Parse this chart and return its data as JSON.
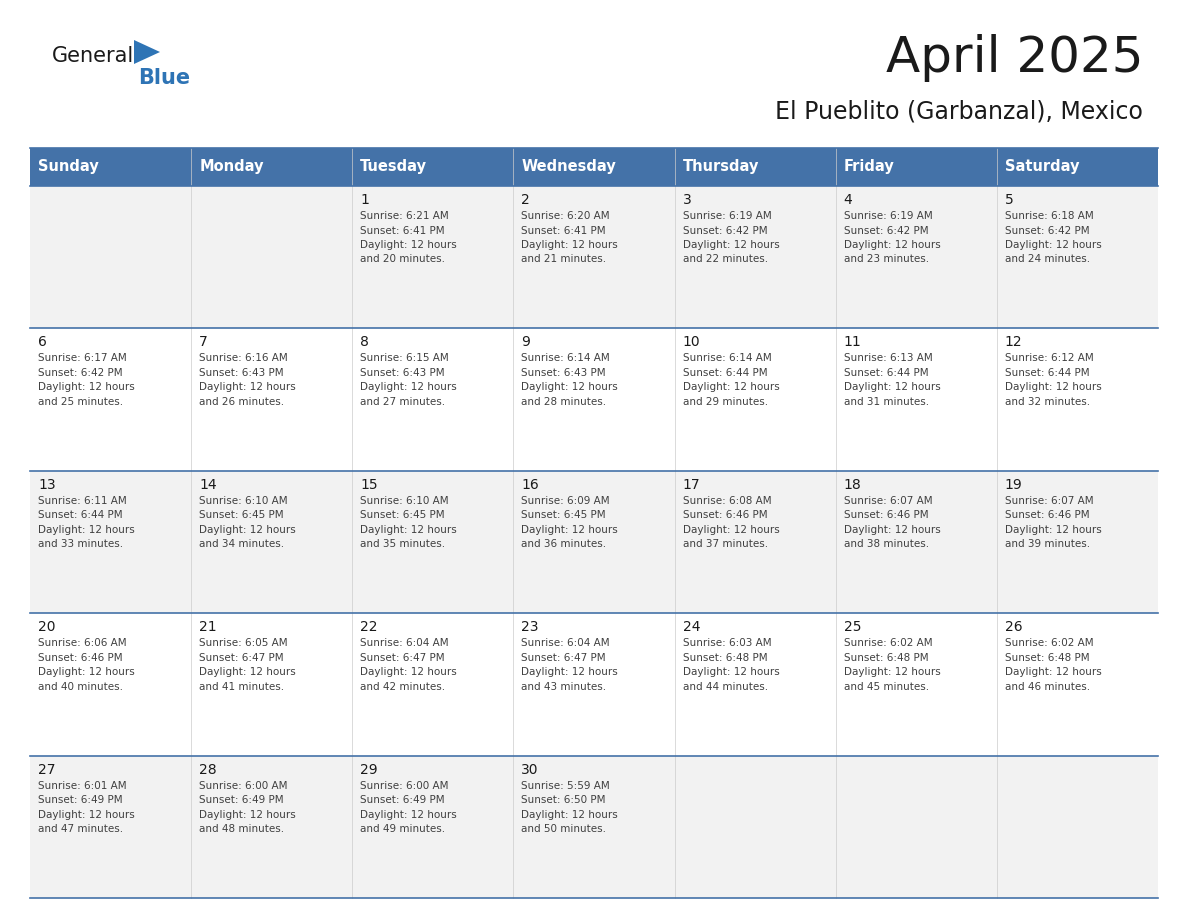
{
  "title": "April 2025",
  "subtitle": "El Pueblito (Garbanzal), Mexico",
  "header_bg_color": "#4472a8",
  "header_text_color": "#ffffff",
  "header_font_size": 10.5,
  "day_names": [
    "Sunday",
    "Monday",
    "Tuesday",
    "Wednesday",
    "Thursday",
    "Friday",
    "Saturday"
  ],
  "row_bg_colors": [
    "#f2f2f2",
    "#ffffff"
  ],
  "grid_line_color": "#4472a8",
  "title_fontsize": 36,
  "subtitle_fontsize": 17,
  "cell_fontsize": 7.5,
  "day_num_fontsize": 10,
  "calendar_data": [
    [
      {
        "day": "",
        "sunrise": "",
        "sunset": "",
        "daylight_min": ""
      },
      {
        "day": "",
        "sunrise": "",
        "sunset": "",
        "daylight_min": ""
      },
      {
        "day": "1",
        "sunrise": "6:21 AM",
        "sunset": "6:41 PM",
        "daylight_min": "20"
      },
      {
        "day": "2",
        "sunrise": "6:20 AM",
        "sunset": "6:41 PM",
        "daylight_min": "21"
      },
      {
        "day": "3",
        "sunrise": "6:19 AM",
        "sunset": "6:42 PM",
        "daylight_min": "22"
      },
      {
        "day": "4",
        "sunrise": "6:19 AM",
        "sunset": "6:42 PM",
        "daylight_min": "23"
      },
      {
        "day": "5",
        "sunrise": "6:18 AM",
        "sunset": "6:42 PM",
        "daylight_min": "24"
      }
    ],
    [
      {
        "day": "6",
        "sunrise": "6:17 AM",
        "sunset": "6:42 PM",
        "daylight_min": "25"
      },
      {
        "day": "7",
        "sunrise": "6:16 AM",
        "sunset": "6:43 PM",
        "daylight_min": "26"
      },
      {
        "day": "8",
        "sunrise": "6:15 AM",
        "sunset": "6:43 PM",
        "daylight_min": "27"
      },
      {
        "day": "9",
        "sunrise": "6:14 AM",
        "sunset": "6:43 PM",
        "daylight_min": "28"
      },
      {
        "day": "10",
        "sunrise": "6:14 AM",
        "sunset": "6:44 PM",
        "daylight_min": "29"
      },
      {
        "day": "11",
        "sunrise": "6:13 AM",
        "sunset": "6:44 PM",
        "daylight_min": "31"
      },
      {
        "day": "12",
        "sunrise": "6:12 AM",
        "sunset": "6:44 PM",
        "daylight_min": "32"
      }
    ],
    [
      {
        "day": "13",
        "sunrise": "6:11 AM",
        "sunset": "6:44 PM",
        "daylight_min": "33"
      },
      {
        "day": "14",
        "sunrise": "6:10 AM",
        "sunset": "6:45 PM",
        "daylight_min": "34"
      },
      {
        "day": "15",
        "sunrise": "6:10 AM",
        "sunset": "6:45 PM",
        "daylight_min": "35"
      },
      {
        "day": "16",
        "sunrise": "6:09 AM",
        "sunset": "6:45 PM",
        "daylight_min": "36"
      },
      {
        "day": "17",
        "sunrise": "6:08 AM",
        "sunset": "6:46 PM",
        "daylight_min": "37"
      },
      {
        "day": "18",
        "sunrise": "6:07 AM",
        "sunset": "6:46 PM",
        "daylight_min": "38"
      },
      {
        "day": "19",
        "sunrise": "6:07 AM",
        "sunset": "6:46 PM",
        "daylight_min": "39"
      }
    ],
    [
      {
        "day": "20",
        "sunrise": "6:06 AM",
        "sunset": "6:46 PM",
        "daylight_min": "40"
      },
      {
        "day": "21",
        "sunrise": "6:05 AM",
        "sunset": "6:47 PM",
        "daylight_min": "41"
      },
      {
        "day": "22",
        "sunrise": "6:04 AM",
        "sunset": "6:47 PM",
        "daylight_min": "42"
      },
      {
        "day": "23",
        "sunrise": "6:04 AM",
        "sunset": "6:47 PM",
        "daylight_min": "43"
      },
      {
        "day": "24",
        "sunrise": "6:03 AM",
        "sunset": "6:48 PM",
        "daylight_min": "44"
      },
      {
        "day": "25",
        "sunrise": "6:02 AM",
        "sunset": "6:48 PM",
        "daylight_min": "45"
      },
      {
        "day": "26",
        "sunrise": "6:02 AM",
        "sunset": "6:48 PM",
        "daylight_min": "46"
      }
    ],
    [
      {
        "day": "27",
        "sunrise": "6:01 AM",
        "sunset": "6:49 PM",
        "daylight_min": "47"
      },
      {
        "day": "28",
        "sunrise": "6:00 AM",
        "sunset": "6:49 PM",
        "daylight_min": "48"
      },
      {
        "day": "29",
        "sunrise": "6:00 AM",
        "sunset": "6:49 PM",
        "daylight_min": "49"
      },
      {
        "day": "30",
        "sunrise": "5:59 AM",
        "sunset": "6:50 PM",
        "daylight_min": "50"
      },
      {
        "day": "",
        "sunrise": "",
        "sunset": "",
        "daylight_min": ""
      },
      {
        "day": "",
        "sunrise": "",
        "sunset": "",
        "daylight_min": ""
      },
      {
        "day": "",
        "sunrise": "",
        "sunset": "",
        "daylight_min": ""
      }
    ]
  ],
  "logo_color_general": "#1a1a1a",
  "logo_color_blue": "#2e74b5",
  "logo_triangle_color": "#2e74b5"
}
